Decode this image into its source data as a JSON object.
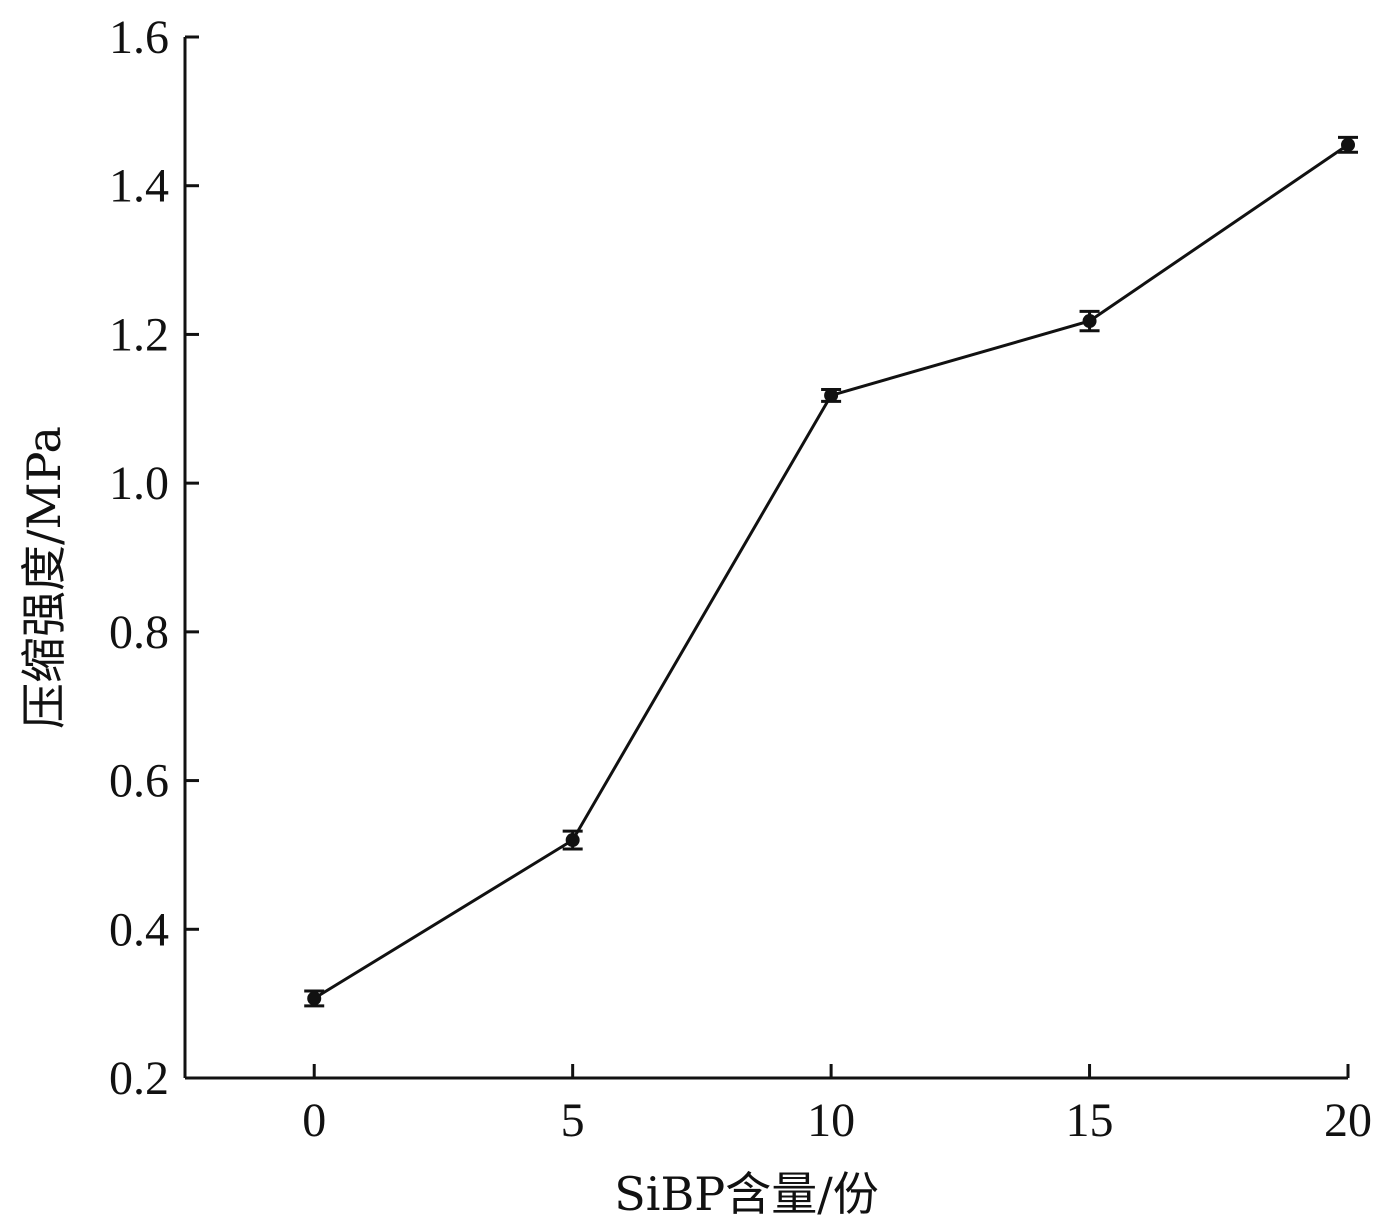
{
  "chart_data": {
    "type": "line",
    "title": "",
    "xlabel": "SiBP含量/份",
    "ylabel": "压缩强度/MPa",
    "x": [
      0,
      5,
      10,
      15,
      20
    ],
    "x_ticks": [
      "0",
      "5",
      "10",
      "15",
      "20"
    ],
    "xlim": [
      -2.5,
      20
    ],
    "ylim": [
      0.2,
      1.6
    ],
    "y_ticks": [
      "0.2",
      "0.4",
      "0.6",
      "0.8",
      "1.0",
      "1.2",
      "1.4",
      "1.6"
    ],
    "grid": false,
    "legend": "none",
    "series": [
      {
        "values": [
          0.307,
          0.52,
          1.118,
          1.218,
          1.455
        ],
        "errors": [
          0.01,
          0.012,
          0.008,
          0.013,
          0.01
        ],
        "marker": "circle",
        "color": "#111111"
      }
    ]
  }
}
